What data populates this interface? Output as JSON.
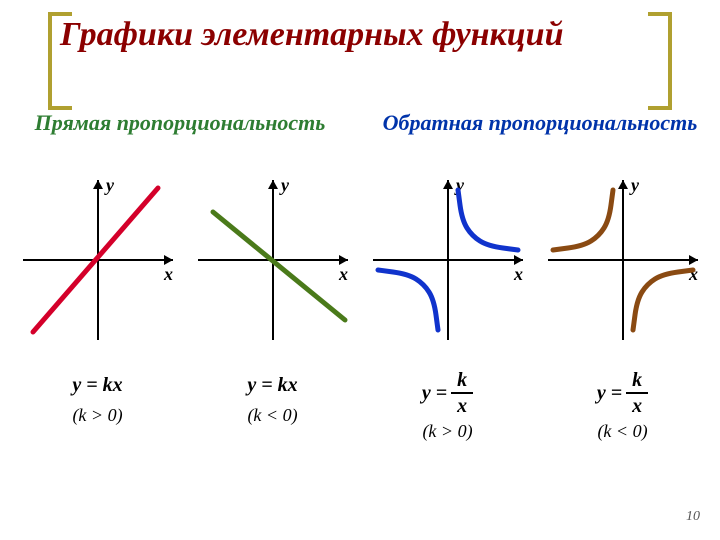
{
  "title": "Графики элементарных функций",
  "bracket_color": "#b0a030",
  "subtitle_left": {
    "text": "Прямая пропорциональность",
    "color": "#2e7d32"
  },
  "subtitle_right": {
    "text": "Обратная пропорциональность",
    "color": "#0033aa"
  },
  "page_number": "10",
  "axes": {
    "xlabel": "x",
    "ylabel": "y",
    "axis_color": "#000000",
    "axis_width": 2
  },
  "plots": [
    {
      "type": "line",
      "curve_color": "#d4002a",
      "curve_width": 5,
      "line_points": [
        [
          -65,
          -72
        ],
        [
          60,
          72
        ]
      ],
      "formula_var": "y",
      "formula_rhs": "kx",
      "condition": "(k  > 0)"
    },
    {
      "type": "line",
      "curve_color": "#4a7a1a",
      "curve_width": 5,
      "line_points": [
        [
          -60,
          48
        ],
        [
          72,
          -60
        ]
      ],
      "formula_var": "y",
      "formula_rhs": "kx",
      "condition": "(k  < 0)"
    },
    {
      "type": "hyperbola",
      "curve_color": "#1033cc",
      "curve_width": 5,
      "branches": [
        [
          [
            10,
            70
          ],
          [
            14,
            40
          ],
          [
            24,
            24
          ],
          [
            40,
            14
          ],
          [
            70,
            10
          ]
        ],
        [
          [
            -10,
            -70
          ],
          [
            -14,
            -40
          ],
          [
            -24,
            -24
          ],
          [
            -40,
            -14
          ],
          [
            -70,
            -10
          ]
        ]
      ],
      "formula_var": "y",
      "formula_num": "k",
      "formula_den": "x",
      "condition": "(k  > 0)"
    },
    {
      "type": "hyperbola",
      "curve_color": "#8a4a12",
      "curve_width": 5,
      "branches": [
        [
          [
            -10,
            70
          ],
          [
            -14,
            40
          ],
          [
            -24,
            24
          ],
          [
            -40,
            14
          ],
          [
            -70,
            10
          ]
        ],
        [
          [
            10,
            -70
          ],
          [
            14,
            -40
          ],
          [
            24,
            -24
          ],
          [
            40,
            -14
          ],
          [
            70,
            -10
          ]
        ]
      ],
      "formula_var": "y",
      "formula_num": "k",
      "formula_den": "x",
      "condition": "(k  < 0)"
    }
  ]
}
